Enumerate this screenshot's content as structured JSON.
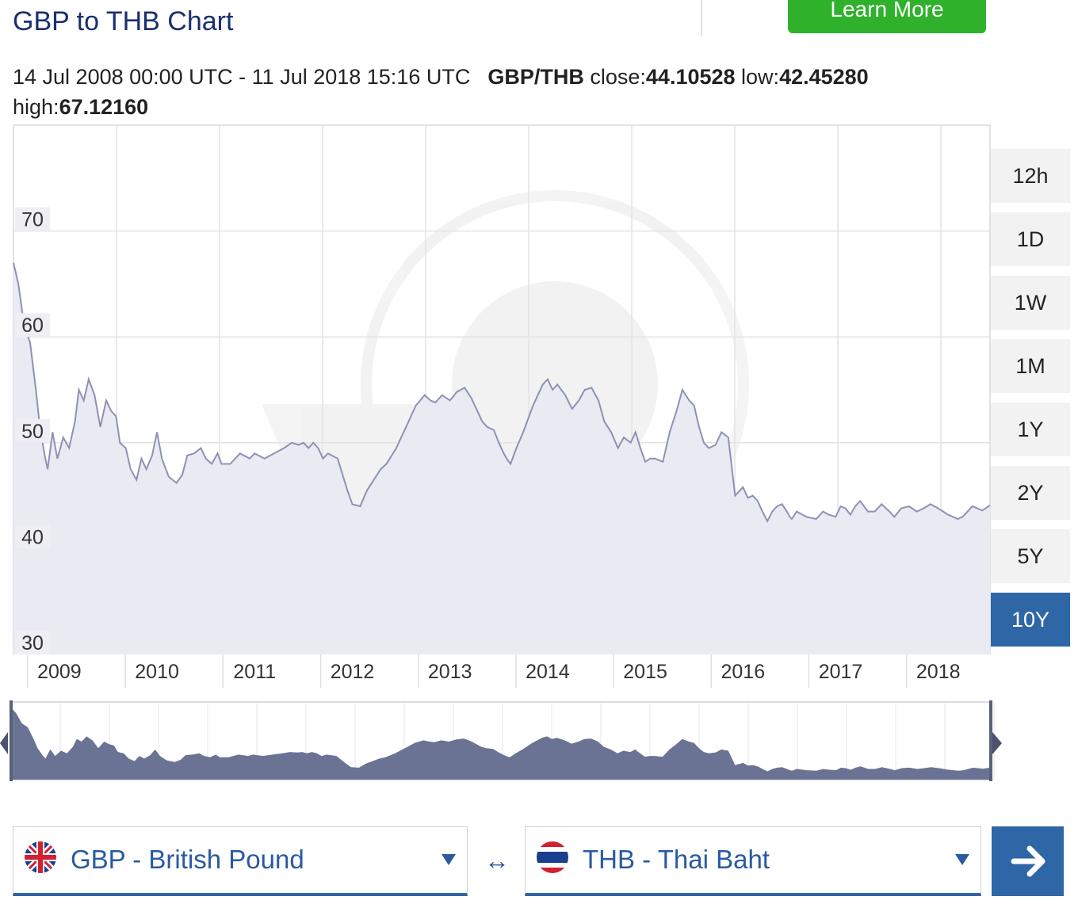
{
  "header": {
    "title": "GBP to THB Chart",
    "learn_more": "Learn More"
  },
  "info": {
    "date_range": "14 Jul 2008 00:00 UTC - 11 Jul 2018 15:16 UTC",
    "pair": "GBP/THB",
    "close_label": "close:",
    "close_value": "44.10528",
    "low_label": "low:",
    "low_value": "42.45280",
    "high_label": "high:",
    "high_value": "67.12160"
  },
  "range_buttons": [
    {
      "label": "12h",
      "active": false
    },
    {
      "label": "1D",
      "active": false
    },
    {
      "label": "1W",
      "active": false
    },
    {
      "label": "1M",
      "active": false
    },
    {
      "label": "1Y",
      "active": false
    },
    {
      "label": "2Y",
      "active": false
    },
    {
      "label": "5Y",
      "active": false
    },
    {
      "label": "10Y",
      "active": true
    }
  ],
  "chart_data": {
    "type": "area",
    "title": "",
    "xlabel": "",
    "ylabel": "",
    "ylim": [
      30,
      80
    ],
    "xlim": [
      2008.53,
      2018.53
    ],
    "y_ticks": [
      30,
      40,
      50,
      60,
      70
    ],
    "x_ticks": [
      "2009",
      "2010",
      "2011",
      "2012",
      "2013",
      "2014",
      "2015",
      "2016",
      "2017",
      "2018"
    ],
    "x_tick_values": [
      2009,
      2010,
      2011,
      2012,
      2013,
      2014,
      2015,
      2016,
      2017,
      2018
    ],
    "grid": true,
    "series": [
      {
        "x": [
          2008.53,
          2008.58,
          2008.64,
          2008.7,
          2008.76,
          2008.8,
          2008.85,
          2008.88,
          2008.93,
          2008.98,
          2009.04,
          2009.1,
          2009.16,
          2009.2,
          2009.25,
          2009.3,
          2009.36,
          2009.42,
          2009.48,
          2009.53,
          2009.58,
          2009.62,
          2009.68,
          2009.73,
          2009.79,
          2009.84,
          2009.89,
          2009.95,
          2010.0,
          2010.05,
          2010.12,
          2010.2,
          2010.26,
          2010.31,
          2010.38,
          2010.45,
          2010.5,
          2010.56,
          2010.62,
          2010.66,
          2010.75,
          2010.85,
          2010.95,
          2011.0,
          2011.1,
          2011.2,
          2011.3,
          2011.38,
          2011.45,
          2011.5,
          2011.55,
          2011.6,
          2011.65,
          2011.7,
          2011.75,
          2011.85,
          2011.95,
          2012.0,
          2012.08,
          2012.15,
          2012.22,
          2012.29,
          2012.35,
          2012.45,
          2012.55,
          2012.65,
          2012.74,
          2012.8,
          2012.85,
          2012.92,
          2013.0,
          2013.07,
          2013.15,
          2013.22,
          2013.28,
          2013.33,
          2013.38,
          2013.45,
          2013.5,
          2013.55,
          2013.58,
          2013.62,
          2013.68,
          2013.75,
          2013.85,
          2013.95,
          2014.0,
          2014.05,
          2014.1,
          2014.18,
          2014.25,
          2014.32,
          2014.38,
          2014.45,
          2014.52,
          2014.58,
          2014.65,
          2014.72,
          2014.78,
          2014.85,
          2014.9,
          2014.95,
          2015.0,
          2015.05,
          2015.1,
          2015.18,
          2015.25,
          2015.32,
          2015.38,
          2015.45,
          2015.5,
          2015.55,
          2015.6,
          2015.65,
          2015.72,
          2015.78,
          2015.85,
          2015.92,
          2016.0,
          2016.05,
          2016.1,
          2016.15,
          2016.2,
          2016.25,
          2016.3,
          2016.35,
          2016.4,
          2016.45,
          2016.48,
          2016.5,
          2016.55,
          2016.65,
          2016.75,
          2016.82,
          2016.88,
          2016.95,
          2017.0,
          2017.05,
          2017.1,
          2017.15,
          2017.2,
          2017.28,
          2017.35,
          2017.42,
          2017.5,
          2017.55,
          2017.62,
          2017.7,
          2017.78,
          2017.85,
          2017.92,
          2018.0,
          2018.05,
          2018.1,
          2018.15,
          2018.2,
          2018.25,
          2018.3,
          2018.35,
          2018.4,
          2018.45,
          2018.5,
          2018.53
        ],
        "values": [
          67.0,
          65.0,
          61.0,
          59.5,
          55.0,
          51.5,
          48.8,
          47.5,
          51.0,
          48.5,
          50.5,
          49.5,
          52.0,
          55.0,
          54.0,
          56.0,
          54.5,
          51.5,
          54.0,
          53.0,
          52.5,
          50.0,
          49.5,
          47.5,
          46.5,
          48.5,
          47.5,
          48.8,
          51.0,
          48.5,
          46.8,
          46.2,
          47.0,
          48.8,
          49.0,
          49.5,
          48.5,
          48.0,
          49.0,
          48.0,
          48.0,
          49.0,
          48.5,
          49.0,
          48.5,
          49.0,
          49.5,
          50.0,
          49.8,
          50.0,
          49.5,
          50.0,
          49.5,
          48.5,
          49.0,
          48.5,
          45.5,
          44.2,
          44.0,
          45.5,
          46.5,
          47.5,
          48.0,
          49.5,
          51.5,
          53.5,
          54.5,
          54.0,
          53.8,
          54.5,
          54.0,
          54.8,
          55.2,
          54.2,
          53.0,
          52.0,
          51.5,
          51.2,
          50.0,
          49.0,
          48.5,
          48.0,
          49.5,
          51.0,
          53.5,
          55.5,
          56.0,
          55.0,
          55.5,
          54.5,
          53.2,
          54.0,
          55.0,
          55.2,
          54.0,
          52.0,
          51.0,
          49.5,
          50.5,
          50.0,
          51.0,
          49.5,
          48.2,
          48.5,
          48.5,
          48.2,
          51.0,
          53.0,
          55.0,
          54.0,
          53.5,
          51.5,
          50.0,
          49.5,
          49.8,
          51.0,
          50.5,
          45.0,
          45.8,
          44.8,
          45.0,
          44.5,
          43.5,
          42.6,
          43.5,
          44.0,
          44.2,
          43.5,
          43.0,
          42.8,
          43.5,
          43.0,
          42.8,
          43.5,
          43.2,
          43.0,
          44.0,
          43.8,
          43.2,
          44.0,
          44.5,
          43.5,
          43.5,
          44.2,
          43.5,
          43.0,
          43.8,
          44.0,
          43.5,
          43.8,
          44.2,
          43.8,
          43.5,
          43.2,
          43.0,
          42.8,
          43.0,
          43.5,
          44.0,
          43.8,
          43.6,
          43.9,
          44.1
        ]
      }
    ]
  },
  "converter": {
    "from": {
      "label": "GBP - British Pound",
      "flag": "uk-flag"
    },
    "swap_symbol": "↔",
    "to": {
      "label": "THB - Thai Baht",
      "flag": "thailand-flag"
    },
    "go_icon": "arrow-right-icon"
  }
}
